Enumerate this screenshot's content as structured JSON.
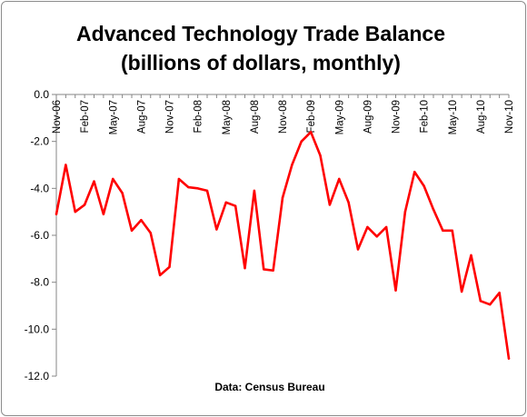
{
  "chart_data": {
    "type": "line",
    "title": "Advanced Technology Trade Balance",
    "subtitle": "(billions of dollars, monthly)",
    "source": "Data: Census Bureau",
    "xlabel": "",
    "ylabel": "",
    "ylim": [
      -12.0,
      0.0
    ],
    "y_ticks": [
      "0.0",
      "-2.0",
      "-4.0",
      "-6.0",
      "-8.0",
      "-10.0",
      "-12.0"
    ],
    "y_tick_values": [
      0,
      -2,
      -4,
      -6,
      -8,
      -10,
      -12
    ],
    "x_tick_labels": [
      "Nov-06",
      "Feb-07",
      "May-07",
      "Aug-07",
      "Nov-07",
      "Feb-08",
      "May-08",
      "Aug-08",
      "Nov-08",
      "Feb-09",
      "May-09",
      "Aug-09",
      "Nov-09",
      "Feb-10",
      "May-10",
      "Aug-10",
      "Nov-10"
    ],
    "x": [
      "Nov-06",
      "Dec-06",
      "Jan-07",
      "Feb-07",
      "Mar-07",
      "Apr-07",
      "May-07",
      "Jun-07",
      "Jul-07",
      "Aug-07",
      "Sep-07",
      "Oct-07",
      "Nov-07",
      "Dec-07",
      "Jan-08",
      "Feb-08",
      "Mar-08",
      "Apr-08",
      "May-08",
      "Jun-08",
      "Jul-08",
      "Aug-08",
      "Sep-08",
      "Oct-08",
      "Nov-08",
      "Dec-08",
      "Jan-09",
      "Feb-09",
      "Mar-09",
      "Apr-09",
      "May-09",
      "Jun-09",
      "Jul-09",
      "Aug-09",
      "Sep-09",
      "Oct-09",
      "Nov-09",
      "Dec-09",
      "Jan-10",
      "Feb-10",
      "Mar-10",
      "Apr-10",
      "May-10",
      "Jun-10",
      "Jul-10",
      "Aug-10",
      "Sep-10",
      "Oct-10",
      "Nov-10"
    ],
    "series": [
      {
        "values": [
          -5.1,
          -3.0,
          -5.0,
          -4.7,
          -3.7,
          -5.1,
          -3.6,
          -4.2,
          -5.8,
          -5.35,
          -5.9,
          -7.7,
          -7.35,
          -3.6,
          -3.95,
          -4.0,
          -4.1,
          -5.75,
          -4.6,
          -4.75,
          -7.4,
          -4.1,
          -7.45,
          -7.5,
          -4.4,
          -3.0,
          -2.0,
          -1.6,
          -2.6,
          -4.7,
          -3.6,
          -4.6,
          -6.6,
          -5.65,
          -6.05,
          -5.65,
          -8.35,
          -5.0,
          -3.3,
          -3.9,
          -4.9,
          -5.8,
          -5.8,
          -8.4,
          -6.85,
          -8.8,
          -8.95,
          -8.45,
          -11.25
        ]
      }
    ],
    "grid": false,
    "legend": "none",
    "line_color": "#ff0000"
  }
}
